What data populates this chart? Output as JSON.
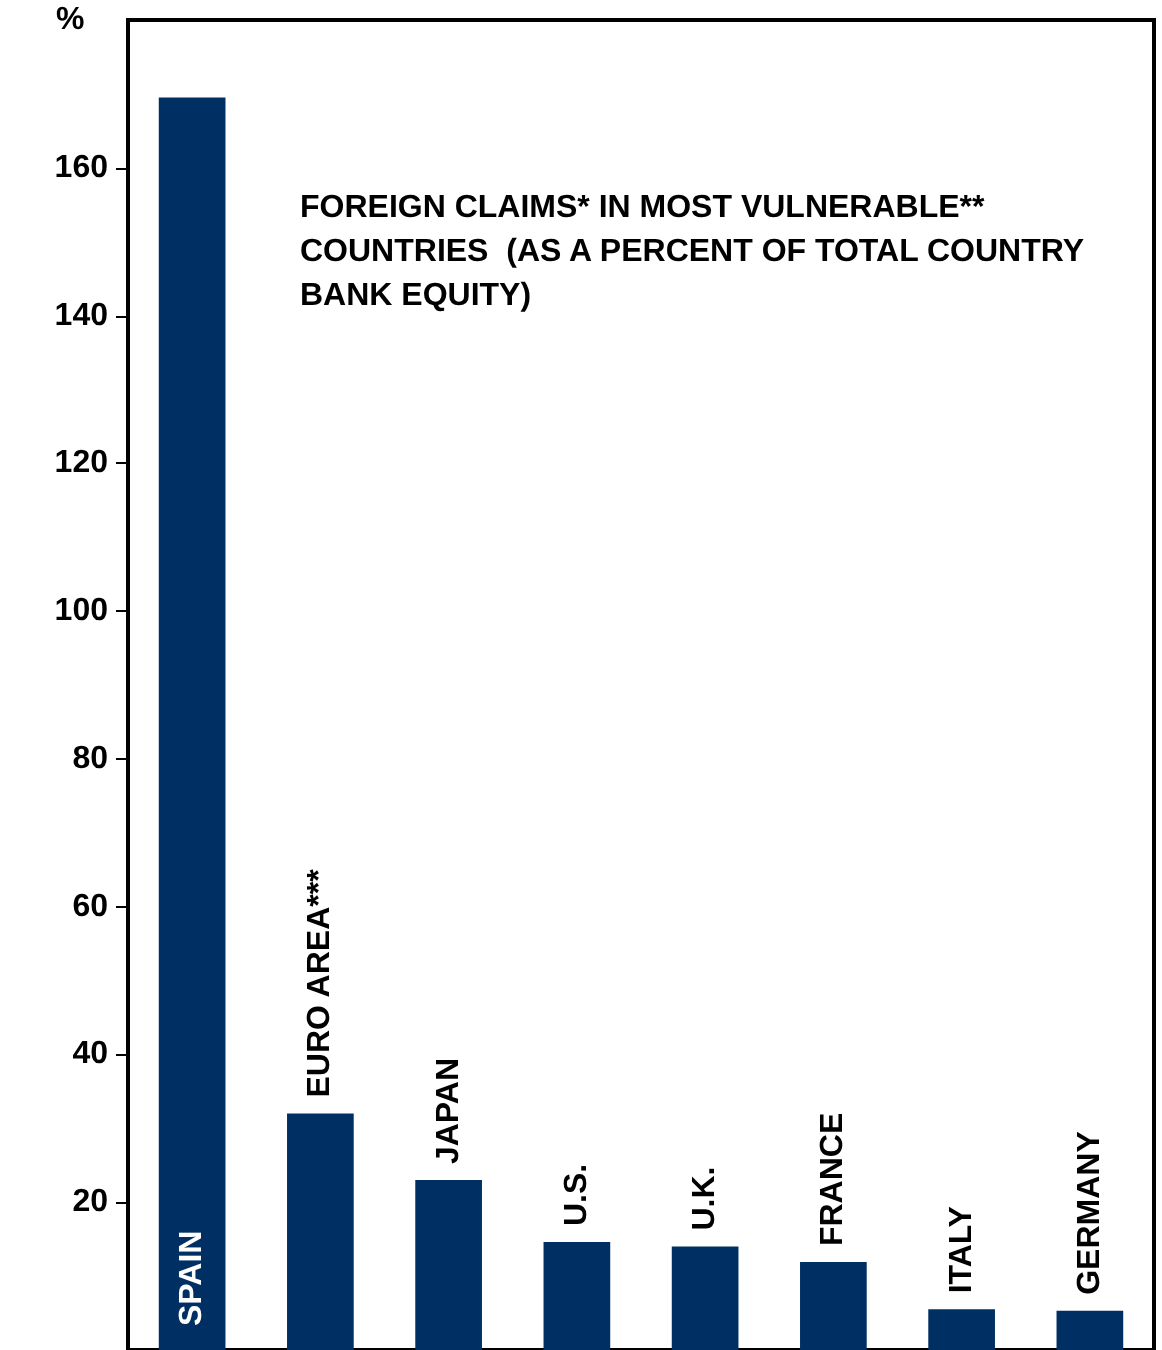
{
  "chart_data": {
    "type": "bar",
    "title": "FOREIGN CLAIMS* IN MOST VULNERABLE** COUNTRIES  (AS A PERCENT OF TOTAL COUNTRY BANK EQUITY)",
    "ylabel": "%",
    "categories": [
      "SPAIN",
      "EURO AREA***",
      "JAPAN",
      "U.S.",
      "U.K.",
      "FRANCE",
      "ITALY",
      "GERMANY"
    ],
    "values": [
      169.5,
      32,
      23,
      14.6,
      14,
      11.9,
      5.5,
      5.3
    ],
    "color": "#003063",
    "ylim": [
      0,
      180
    ],
    "yticks": [
      20,
      40,
      60,
      80,
      100,
      120,
      140,
      160
    ],
    "grid": false
  }
}
